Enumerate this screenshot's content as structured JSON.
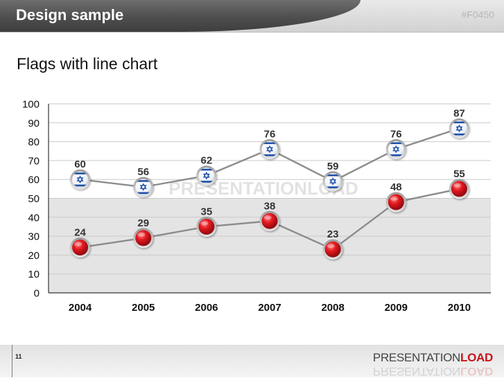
{
  "header": {
    "title": "Design sample",
    "code": "#F0450"
  },
  "slide": {
    "subtitle": "Flags with line chart",
    "page_number": "11"
  },
  "branding": {
    "logo_part1": "PRESENTATION",
    "logo_part2": "LOAD",
    "watermark": "PRESENTATIONLOAD"
  },
  "colors": {
    "red": "#d3141b",
    "flag_blue": "#1f4fa8",
    "line": "#8c8c8c",
    "band": "#e4e4e4"
  },
  "chart_data": {
    "type": "line",
    "title": "Flags with line chart",
    "categories": [
      "2004",
      "2005",
      "2006",
      "2007",
      "2008",
      "2009",
      "2010"
    ],
    "series": [
      {
        "name": "Israel flag series",
        "marker": "israel-flag",
        "values": [
          60,
          56,
          62,
          76,
          59,
          76,
          87
        ]
      },
      {
        "name": "Red marker series",
        "marker": "red-ball",
        "values": [
          24,
          29,
          35,
          38,
          23,
          48,
          55
        ]
      }
    ],
    "ylim": [
      0,
      100
    ],
    "yticks": [
      0,
      10,
      20,
      30,
      40,
      50,
      60,
      70,
      80,
      90,
      100
    ],
    "shaded_band": [
      0,
      50
    ],
    "grid": true,
    "xlabel": "",
    "ylabel": ""
  }
}
